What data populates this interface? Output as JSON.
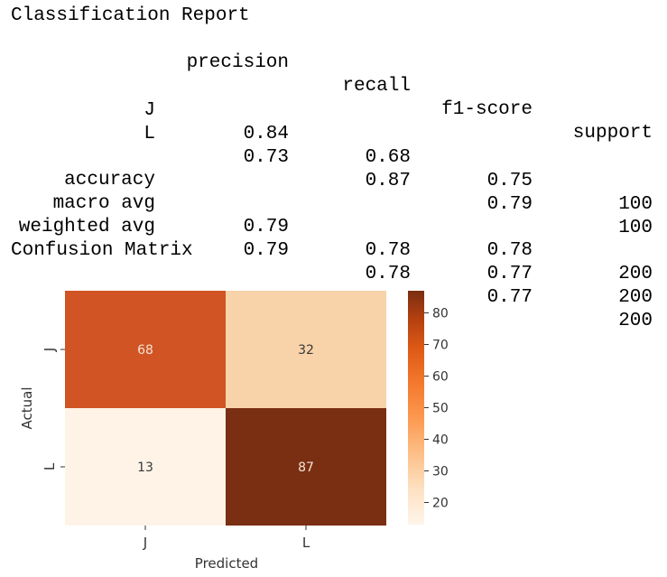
{
  "report": {
    "title": "Classification Report",
    "headers": [
      "precision",
      "recall",
      "f1-score",
      "support"
    ],
    "rows": [
      {
        "label": "J",
        "values": [
          "0.84",
          "0.68",
          "0.75",
          "100"
        ]
      },
      {
        "label": "L",
        "values": [
          "0.73",
          "0.87",
          "0.79",
          "100"
        ]
      },
      {
        "label": "accuracy",
        "values": [
          "",
          "",
          "0.78",
          "200"
        ]
      },
      {
        "label": "macro avg",
        "values": [
          "0.79",
          "0.78",
          "0.77",
          "200"
        ]
      },
      {
        "label": "weighted avg",
        "values": [
          "0.79",
          "0.78",
          "0.77",
          "200"
        ]
      }
    ]
  },
  "confusion": {
    "title": "Confusion Matrix"
  },
  "chart_data": {
    "type": "heatmap",
    "x_categories": [
      "J",
      "L"
    ],
    "y_categories": [
      "J",
      "L"
    ],
    "values": [
      [
        68,
        32
      ],
      [
        13,
        87
      ]
    ],
    "xlabel": "Predicted",
    "ylabel": "Actual",
    "colormap": "Oranges",
    "colorbar": {
      "min": 13,
      "max": 87,
      "ticks": [
        20,
        30,
        40,
        50,
        60,
        70,
        80
      ]
    },
    "cell_colors": {
      "68": "#d05424",
      "32": "#f8d2a8",
      "13": "#fff3e8",
      "87": "#7a2e12"
    }
  }
}
